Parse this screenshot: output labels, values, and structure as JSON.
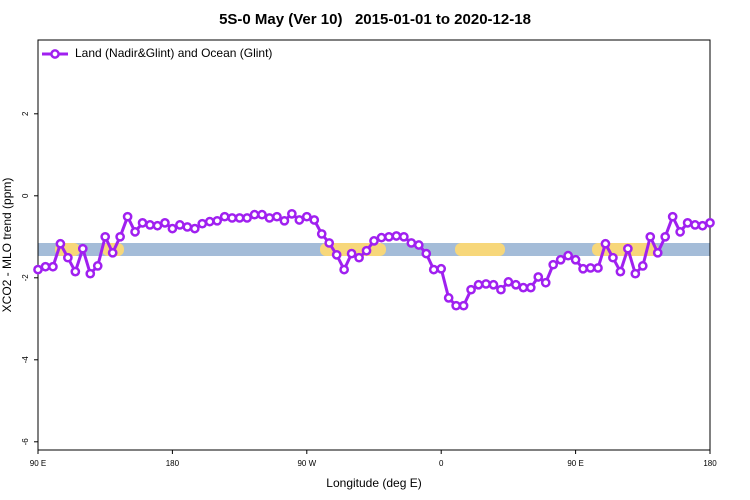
{
  "chart_data": {
    "type": "line",
    "title": "5S-0 May (Ver 10)   2015-01-01 to 2020-12-18",
    "x_label": "Longitude (deg E)",
    "y_label": "XCO2 - MLO trend (ppm)",
    "legend": "top-left",
    "x": [
      90,
      95,
      100,
      105,
      110,
      115,
      120,
      125,
      130,
      135,
      140,
      145,
      150,
      155,
      160,
      165,
      170,
      175,
      180,
      185,
      190,
      195,
      200,
      205,
      210,
      215,
      220,
      225,
      230,
      235,
      240,
      245,
      250,
      255,
      260,
      265,
      270,
      275,
      280,
      285,
      290,
      295,
      300,
      305,
      310,
      315,
      320,
      325,
      330,
      335,
      340,
      345,
      350,
      355,
      360,
      365,
      370,
      375,
      380,
      385,
      390,
      395,
      400,
      405,
      410,
      415,
      420,
      425,
      430,
      435,
      440,
      445,
      450,
      455,
      460,
      465,
      470,
      475,
      480,
      485,
      490,
      495,
      500,
      505,
      510,
      515,
      520,
      525,
      530,
      535,
      540
    ],
    "series": [
      {
        "name": "Land (Nadir&Glint) and Ocean (Glint)",
        "color": "#a020f0",
        "values": [
          -1.8,
          -1.73,
          -1.73,
          -1.17,
          -1.51,
          -1.85,
          -1.29,
          -1.9,
          -1.71,
          -1.0,
          -1.39,
          -1.0,
          -0.51,
          -0.88,
          -0.66,
          -0.71,
          -0.73,
          -0.66,
          -0.8,
          -0.71,
          -0.76,
          -0.8,
          -0.68,
          -0.63,
          -0.61,
          -0.51,
          -0.54,
          -0.54,
          -0.54,
          -0.46,
          -0.46,
          -0.54,
          -0.51,
          -0.61,
          -0.44,
          -0.59,
          -0.51,
          -0.59,
          -0.93,
          -1.15,
          -1.44,
          -1.8,
          -1.41,
          -1.51,
          -1.34,
          -1.1,
          -1.02,
          -1.0,
          -0.98,
          -1.0,
          -1.15,
          -1.2,
          -1.41,
          -1.8,
          -1.78,
          -2.49,
          -2.68,
          -2.68,
          -2.29,
          -2.17,
          -2.15,
          -2.17,
          -2.29,
          -2.1,
          -2.17,
          -2.24,
          -2.24,
          -1.98,
          -2.12,
          -1.68,
          -1.56,
          -1.46,
          -1.56,
          -1.78,
          -1.76,
          -1.76,
          -1.17,
          -1.51,
          -1.85,
          -1.29,
          -1.9,
          -1.71,
          -1.0,
          -1.39,
          -1.0,
          -0.51,
          -0.88,
          -0.66,
          -0.71,
          -0.73,
          -0.66
        ]
      }
    ],
    "xlim": [
      90,
      540
    ],
    "xticks": [
      {
        "value": 90,
        "label": "90 E"
      },
      180,
      {
        "value": 270,
        "label": "90 W"
      },
      {
        "value": 360,
        "label": "0"
      },
      {
        "value": 450,
        "label": "90 E"
      },
      {
        "value": 540,
        "label": "180"
      }
    ],
    "ylim": [
      -6.2,
      3.8
    ],
    "yticks": [
      -6,
      -4,
      -2,
      0,
      2
    ]
  }
}
